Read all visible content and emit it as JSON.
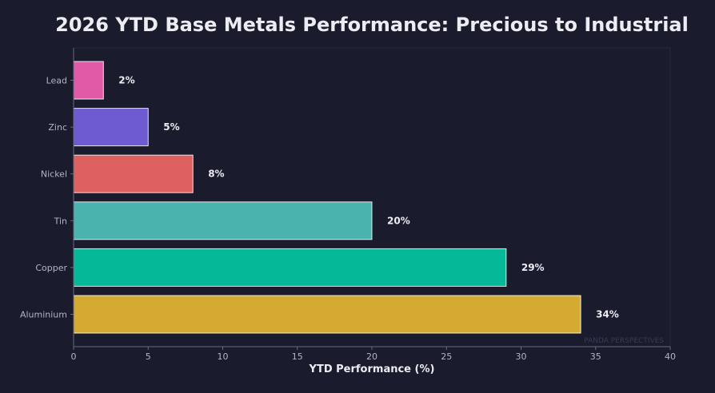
{
  "chart_data": {
    "type": "bar",
    "orientation": "horizontal",
    "title": "2026 YTD Base Metals Performance: Precious to Industrial",
    "xlabel": "YTD Performance (%)",
    "ylabel": "",
    "xlim": [
      0,
      40
    ],
    "xticks": [
      0,
      5,
      10,
      15,
      20,
      25,
      30,
      35,
      40
    ],
    "categories": [
      "Lead",
      "Zinc",
      "Nickel",
      "Tin",
      "Copper",
      "Aluminium"
    ],
    "values": [
      2,
      5,
      8,
      20,
      29,
      34
    ],
    "data_labels": [
      "2%",
      "5%",
      "8%",
      "20%",
      "29%",
      "34%"
    ],
    "colors": [
      "#e05aa8",
      "#6f5bd1",
      "#df6060",
      "#4ab3ad",
      "#04b898",
      "#d4aa32"
    ],
    "grid": false,
    "legend": "none",
    "watermark": "PANDA PERSPECTIVES"
  }
}
